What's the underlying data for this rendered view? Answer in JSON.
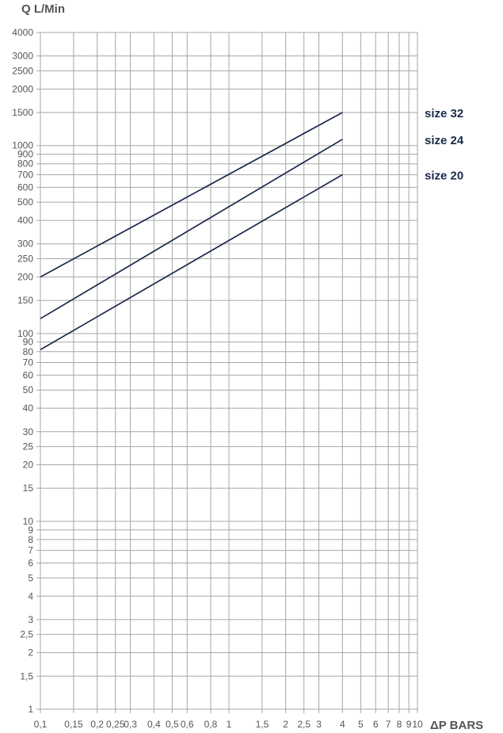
{
  "chart_data": {
    "type": "line",
    "title": "",
    "ylabel": "Q L/Min",
    "xlabel": "ΔP BARS",
    "x_scale": "log",
    "y_scale": "log",
    "xlim": [
      0.1,
      10
    ],
    "ylim": [
      1,
      4000
    ],
    "grid": true,
    "x_ticks": [
      0.1,
      0.15,
      0.2,
      0.25,
      0.3,
      0.4,
      0.5,
      0.6,
      0.8,
      1,
      1.5,
      2,
      2.5,
      3,
      4,
      5,
      6,
      7,
      8,
      9,
      10
    ],
    "x_tick_labels": [
      "0,1",
      "0,15",
      "0,2",
      "0,25",
      "0,3",
      "0,4",
      "0,5",
      "0,6",
      "0,8",
      "1",
      "1,5",
      "2",
      "2,5",
      "3",
      "4",
      "5",
      "6",
      "7",
      "8",
      "9",
      "10"
    ],
    "y_ticks": [
      1,
      1.5,
      2,
      2.5,
      3,
      4,
      5,
      6,
      7,
      8,
      9,
      10,
      15,
      20,
      25,
      30,
      40,
      50,
      60,
      70,
      80,
      90,
      100,
      150,
      200,
      250,
      300,
      400,
      500,
      600,
      700,
      800,
      900,
      1000,
      1500,
      2000,
      2500,
      3000,
      4000
    ],
    "y_tick_labels": [
      "1",
      "1,5",
      "2",
      "2,5",
      "3",
      "4",
      "5",
      "6",
      "7",
      "8",
      "9",
      "10",
      "15",
      "20",
      "25",
      "30",
      "40",
      "50",
      "60",
      "70",
      "80",
      "90",
      "100",
      "150",
      "200",
      "250",
      "300",
      "400",
      "500",
      "600",
      "700",
      "800",
      "900",
      "1000",
      "1500",
      "2000",
      "2500",
      "3000",
      "4000"
    ],
    "series": [
      {
        "name": "size 32",
        "color": "#1b2a4a",
        "x": [
          0.1,
          4
        ],
        "y": [
          200,
          1500
        ]
      },
      {
        "name": "size 24",
        "color": "#1b2a4a",
        "x": [
          0.1,
          4
        ],
        "y": [
          120,
          1080
        ]
      },
      {
        "name": "size 20",
        "color": "#1b2a4a",
        "x": [
          0.1,
          4
        ],
        "y": [
          82,
          700
        ]
      }
    ],
    "colors": {
      "grid": "#a6a6a6",
      "axis_text": "#555555",
      "series_label": "#1b2a4a"
    }
  }
}
